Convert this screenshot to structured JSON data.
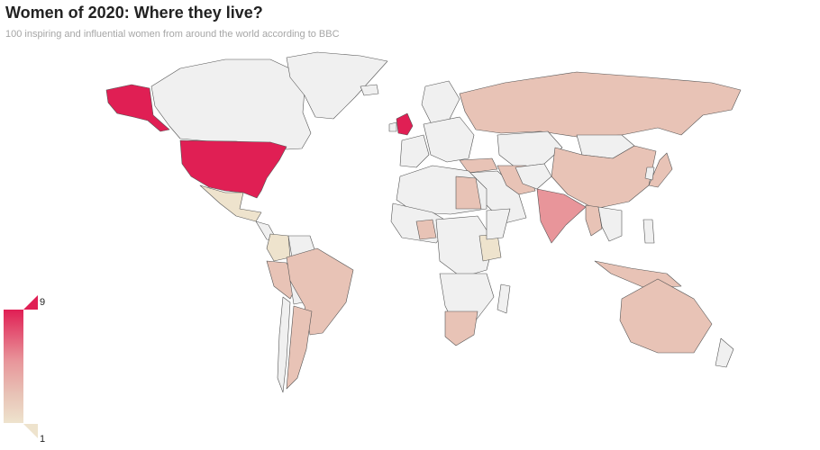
{
  "title": "Women of 2020: Where they live?",
  "subtitle": "100 inspiring and influential women from around the world according to BBC",
  "colors": {
    "background": "#ffffff",
    "no_data": "#f0f0f0",
    "border": "#555555",
    "scale_min": "#eee3cd",
    "scale_mid": "#e8c3b6",
    "scale_high": "#e8959a",
    "scale_max": "#e01f54"
  },
  "legend": {
    "max_label": "9",
    "min_label": "1",
    "min": 1,
    "max": 9
  },
  "map_data": {
    "type": "choropleth",
    "regions": [
      {
        "name": "United States",
        "value": 9
      },
      {
        "name": "United Kingdom",
        "value": 9
      },
      {
        "name": "India",
        "value": 5
      },
      {
        "name": "Russia",
        "value": 3
      },
      {
        "name": "China",
        "value": 3
      },
      {
        "name": "Brazil",
        "value": 3
      },
      {
        "name": "Australia",
        "value": 3
      },
      {
        "name": "Argentina",
        "value": 2
      },
      {
        "name": "Mexico",
        "value": 1
      },
      {
        "name": "Egypt",
        "value": 2
      },
      {
        "name": "Nigeria",
        "value": 2
      },
      {
        "name": "South Africa",
        "value": 2
      },
      {
        "name": "Kenya",
        "value": 1
      },
      {
        "name": "Turkey",
        "value": 2
      },
      {
        "name": "Iran",
        "value": 2
      },
      {
        "name": "Japan",
        "value": 2
      },
      {
        "name": "Indonesia",
        "value": 2
      },
      {
        "name": "Myanmar",
        "value": 2
      },
      {
        "name": "Peru",
        "value": 2
      },
      {
        "name": "Colombia",
        "value": 1
      },
      {
        "name": "Canada",
        "value": 0
      },
      {
        "name": "Greenland",
        "value": 0
      },
      {
        "name": "Kazakhstan",
        "value": 0
      },
      {
        "name": "Mongolia",
        "value": 0
      }
    ]
  }
}
